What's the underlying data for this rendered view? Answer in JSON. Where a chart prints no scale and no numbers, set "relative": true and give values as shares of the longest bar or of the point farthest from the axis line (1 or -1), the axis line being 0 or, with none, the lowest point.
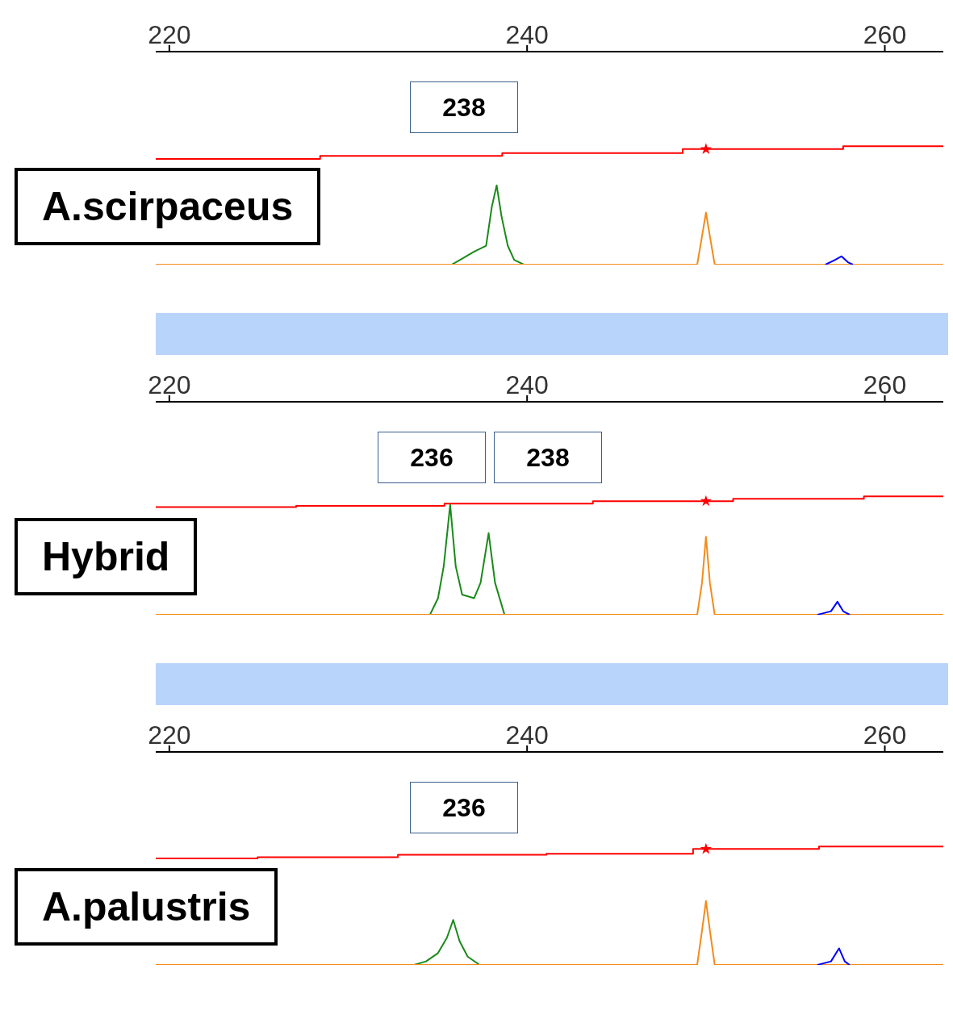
{
  "chart_data": [
    {
      "type": "line",
      "relative": true,
      "title": "A.scirpaceus",
      "xlim": [
        219.24,
        263.27
      ],
      "xticks": [
        220,
        240,
        260
      ],
      "annotations": [
        "238"
      ],
      "series": [
        {
          "type": "step",
          "color": "#ff0000",
          "x": [
            219.24,
            228.43,
            238.61,
            248.7,
            257.67,
            263.27
          ],
          "values": [
            0.894,
            0.919,
            0.943,
            0.976,
            1,
            1
          ]
        },
        {
          "color": "#1a8a1a",
          "x": [
            235.78,
            236.37,
            237.04,
            237.71,
            238.03,
            238.3,
            238.57,
            238.92,
            239.28,
            239.82
          ],
          "values": [
            0,
            0.05,
            0.11,
            0.16,
            0.49,
            0.67,
            0.41,
            0.16,
            0.04,
            0
          ]
        },
        {
          "color": "#f28c1c",
          "x": [
            219.24,
            249.51,
            249.78,
            250,
            250.22,
            250.49,
            263.27
          ],
          "values": [
            0,
            0,
            0.24,
            0.44,
            0.24,
            0,
            0
          ]
        },
        {
          "color": "#0000ff",
          "x": [
            256.68,
            257.22,
            257.58,
            257.94,
            258.21
          ],
          "values": [
            0,
            0.04,
            0.07,
            0.02,
            0
          ]
        },
        {
          "type": "scatter",
          "color": "#ff0000",
          "marker": "star",
          "x": [
            250
          ],
          "values": [
            0.976
          ]
        }
      ]
    },
    {
      "type": "line",
      "relative": true,
      "title": "Hybrid",
      "xlim": [
        219.24,
        263.27
      ],
      "xticks": [
        220,
        240,
        260
      ],
      "annotations": [
        "236",
        "238"
      ],
      "series": [
        {
          "type": "step",
          "color": "#ff0000",
          "x": [
            219.24,
            227.09,
            235.38,
            243.68,
            251.52,
            258.83,
            263.27
          ],
          "values": [
            0.91,
            0.92,
            0.94,
            0.96,
            0.98,
            1,
            1
          ]
        },
        {
          "color": "#1a8a1a",
          "x": [
            234.57,
            235.02,
            235.34,
            235.7,
            236.01,
            236.37,
            237.04,
            237.4,
            237.85,
            238.21,
            238.74
          ],
          "values": [
            0,
            0.14,
            0.41,
            0.93,
            0.41,
            0.17,
            0.14,
            0.27,
            0.69,
            0.27,
            0
          ]
        },
        {
          "color": "#f28c1c",
          "x": [
            219.24,
            249.51,
            249.78,
            250,
            250.22,
            250.49,
            263.27
          ],
          "values": [
            0,
            0,
            0.27,
            0.66,
            0.27,
            0,
            0
          ]
        },
        {
          "color": "#0000ff",
          "x": [
            256.23,
            256.99,
            257.35,
            257.67,
            258.03
          ],
          "values": [
            0,
            0.03,
            0.11,
            0.03,
            0
          ]
        },
        {
          "type": "scatter",
          "color": "#ff0000",
          "marker": "star",
          "x": [
            250
          ],
          "values": [
            0.96
          ]
        }
      ]
    },
    {
      "type": "line",
      "relative": true,
      "title": "A.palustris",
      "xlim": [
        219.24,
        263.27
      ],
      "xticks": [
        220,
        240,
        260
      ],
      "annotations": [
        "236"
      ],
      "series": [
        {
          "type": "step",
          "color": "#ff0000",
          "x": [
            219.24,
            224.93,
            232.78,
            241.08,
            249.28,
            256.32,
            263.27
          ],
          "values": [
            0.9,
            0.91,
            0.93,
            0.94,
            0.98,
            1,
            1
          ]
        },
        {
          "color": "#1a8a1a",
          "x": [
            233.68,
            234.35,
            235.02,
            235.52,
            235.87,
            236.23,
            236.68,
            237.35
          ],
          "values": [
            0,
            0.03,
            0.1,
            0.23,
            0.38,
            0.2,
            0.07,
            0
          ]
        },
        {
          "color": "#f28c1c",
          "x": [
            219.24,
            249.51,
            249.78,
            250,
            250.22,
            250.49,
            263.27
          ],
          "values": [
            0,
            0,
            0.29,
            0.54,
            0.29,
            0,
            0
          ]
        },
        {
          "color": "#0000ff",
          "x": [
            256.23,
            256.99,
            257.44,
            257.76,
            258.03
          ],
          "values": [
            0,
            0.03,
            0.14,
            0.03,
            0
          ]
        },
        {
          "type": "scatter",
          "color": "#ff0000",
          "marker": "star",
          "x": [
            250
          ],
          "values": [
            0.98
          ]
        }
      ]
    }
  ]
}
